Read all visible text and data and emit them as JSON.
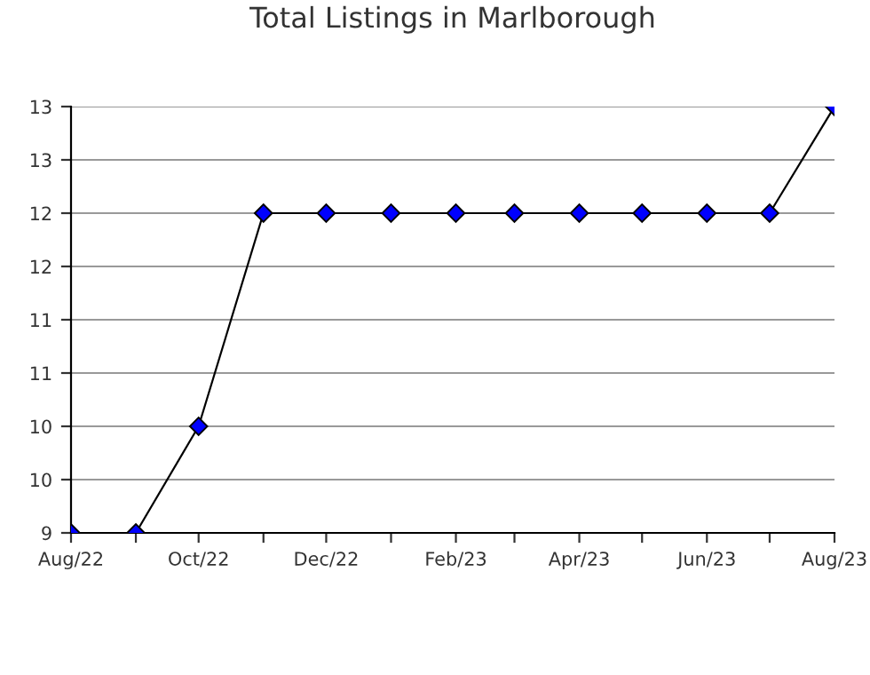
{
  "chart_data": {
    "type": "line",
    "title": "Total Listings in Marlborough",
    "x": [
      "2022-08",
      "2022-09",
      "2022-10",
      "2022-11",
      "2022-12",
      "2023-01",
      "2023-02",
      "2023-03",
      "2023-04",
      "2023-05",
      "2023-06",
      "2023-07",
      "2023-08"
    ],
    "series": [
      {
        "color": "#0000ff",
        "values": [
          9,
          9,
          10,
          12,
          12,
          12,
          12,
          12,
          12,
          12,
          12,
          12,
          13
        ]
      }
    ],
    "xlim": [
      "2022-08",
      "2023-08"
    ],
    "xticks": [
      {
        "value": "2022-08",
        "label": "Aug/22"
      },
      {
        "value": "2022-09",
        "label": null
      },
      {
        "value": "2022-10",
        "label": "Oct/22"
      },
      {
        "value": "2022-11",
        "label": null
      },
      {
        "value": "2022-12",
        "label": "Dec/22"
      },
      {
        "value": "2023-01",
        "label": null
      },
      {
        "value": "2023-02",
        "label": "Feb/23"
      },
      {
        "value": "2023-03",
        "label": null
      },
      {
        "value": "2023-04",
        "label": "Apr/23"
      },
      {
        "value": "2023-05",
        "label": null
      },
      {
        "value": "2023-06",
        "label": "Jun/23"
      },
      {
        "value": "2023-07",
        "label": null
      },
      {
        "value": "2023-08",
        "label": "Aug/23"
      }
    ],
    "ylim": [
      9,
      13
    ],
    "yticks": [
      9,
      {
        "value": 9.5,
        "label": "10"
      },
      10,
      {
        "value": 10.5,
        "label": "11"
      },
      11,
      {
        "value": 11.5,
        "label": "12"
      },
      12,
      {
        "value": 12.5,
        "label": "13"
      },
      13
    ],
    "grid": "y",
    "marker": "diamond",
    "line_style": "solid"
  }
}
